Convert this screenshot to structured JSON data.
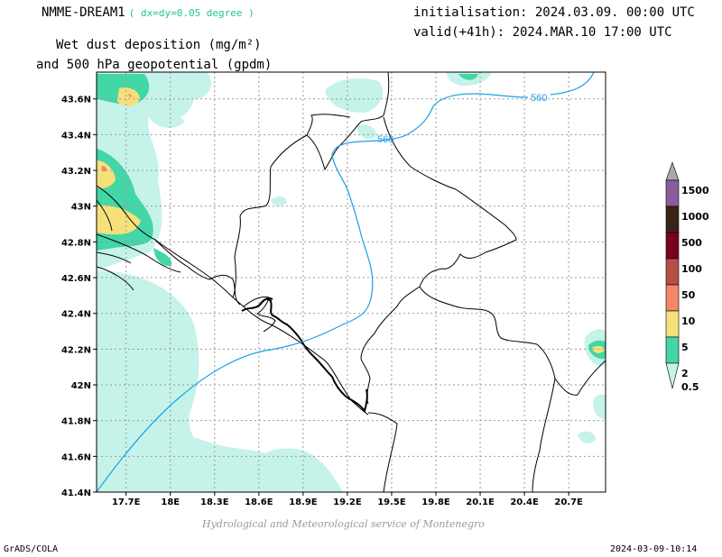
{
  "header": {
    "model": "NMME-DREAM1",
    "model_note": "( dx=dy=0.05 degree )",
    "title_line1": "Wet dust deposition (mg/m²)",
    "title_line2": "and 500 hPa geopotential (gpdm)",
    "init": "initialisation: 2024.03.09. 00:00 UTC",
    "valid": "valid(+41h): 2024.MAR.10 17:00 UTC"
  },
  "footer": {
    "credit": "Hydrological and Meteorological service of Montenegro",
    "software": "GrADS/COLA",
    "timestamp": "2024-03-09-10:14"
  },
  "axes": {
    "lon_labels": [
      "17.7E",
      "18E",
      "18.3E",
      "18.6E",
      "18.9E",
      "19.2E",
      "19.5E",
      "19.8E",
      "20.1E",
      "20.4E",
      "20.7E"
    ],
    "lon_values": [
      17.7,
      18.0,
      18.3,
      18.6,
      18.9,
      19.2,
      19.5,
      19.8,
      20.1,
      20.4,
      20.7
    ],
    "lon_range": [
      17.5,
      20.95
    ],
    "lat_labels": [
      "41.4N",
      "41.6N",
      "41.8N",
      "42N",
      "42.2N",
      "42.4N",
      "42.6N",
      "42.8N",
      "43N",
      "43.2N",
      "43.4N",
      "43.6N"
    ],
    "lat_values": [
      41.4,
      41.6,
      41.8,
      42.0,
      42.2,
      42.4,
      42.6,
      42.8,
      43.0,
      43.2,
      43.4,
      43.6
    ],
    "lat_range": [
      41.4,
      43.75
    ],
    "grid": true
  },
  "contours": {
    "geopotential_label_1": "560",
    "geopotential_label_2": "560",
    "color": "#1aa0e6"
  },
  "colorbar": {
    "levels": [
      {
        "label": "1500",
        "color": "#a8a8a8"
      },
      {
        "label": "1000",
        "color": "#8a5c9c"
      },
      {
        "label": "500",
        "color": "#3a2418"
      },
      {
        "label": "100",
        "color": "#7a0020"
      },
      {
        "label": "50",
        "color": "#b84e45"
      },
      {
        "label": "10",
        "color": "#f4876a"
      },
      {
        "label": "5",
        "color": "#f6e07a"
      },
      {
        "label": "2",
        "color": "#43d6a6"
      },
      {
        "label": "0.5",
        "color": "#c5f3ea"
      }
    ]
  }
}
